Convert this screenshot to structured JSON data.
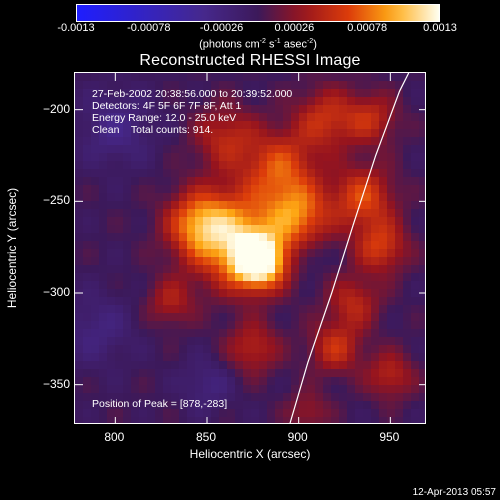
{
  "colorbar": {
    "ticks": [
      "-0.0013",
      "-0.00078",
      "-0.00026",
      "0.00026",
      "0.00078",
      "0.0013"
    ],
    "tick_values": [
      -0.0013,
      -0.00078,
      -0.00026,
      0.00026,
      0.00078,
      0.0013
    ],
    "range": [
      -0.0013,
      0.0013
    ]
  },
  "chart_data": {
    "type": "heatmap",
    "title": "Reconstructed RHESSI Image",
    "colorbar_units": {
      "prefix": "(photons cm",
      "exp1": "-2",
      "mid": " s",
      "exp2": "-1",
      "mid2": " asec",
      "exp3": "-2",
      "suffix": ")"
    },
    "xlabel": "Heliocentric X (arcsec)",
    "ylabel": "Heliocentric Y (arcsec)",
    "xlim": [
      778,
      970
    ],
    "ylim": [
      -372,
      -180
    ],
    "x_ticks": [
      800,
      850,
      900,
      950
    ],
    "y_ticks": [
      -200,
      -250,
      -300,
      -350
    ],
    "info": [
      "27-Feb-2002 20:38:56.000 to 20:39:52.000",
      "Detectors: 4F 5F 6F 7F 8F, Att 1",
      "Energy Range: 12.0 - 25.0 keV",
      "Clean    Total counts: 914."
    ],
    "peak_label": "Position of Peak = [878,-283]",
    "peak": [
      878,
      -283
    ],
    "limb_points": [
      [
        895,
        -372
      ],
      [
        905,
        -338
      ],
      [
        918,
        -300
      ],
      [
        930,
        -262
      ],
      [
        942,
        -225
      ],
      [
        955,
        -190
      ],
      [
        960,
        -180
      ]
    ],
    "sources": [
      {
        "x": 878,
        "y": -283,
        "amp": 1.0,
        "r": 10
      },
      {
        "x": 865,
        "y": -270,
        "amp": 0.7,
        "r": 18
      },
      {
        "x": 845,
        "y": -262,
        "amp": 0.5,
        "r": 12
      },
      {
        "x": 900,
        "y": -258,
        "amp": 0.55,
        "r": 12
      },
      {
        "x": 890,
        "y": -232,
        "amp": 0.5,
        "r": 14
      },
      {
        "x": 935,
        "y": -248,
        "amp": 0.5,
        "r": 12
      },
      {
        "x": 945,
        "y": -275,
        "amp": 0.45,
        "r": 10
      },
      {
        "x": 860,
        "y": -215,
        "amp": 0.35,
        "r": 12
      },
      {
        "x": 915,
        "y": -205,
        "amp": 0.4,
        "r": 12
      },
      {
        "x": 940,
        "y": -205,
        "amp": 0.35,
        "r": 10
      },
      {
        "x": 930,
        "y": -305,
        "amp": 0.35,
        "r": 10
      },
      {
        "x": 920,
        "y": -330,
        "amp": 0.4,
        "r": 10
      },
      {
        "x": 875,
        "y": -330,
        "amp": 0.35,
        "r": 10
      },
      {
        "x": 950,
        "y": -345,
        "amp": 0.35,
        "r": 9
      },
      {
        "x": 830,
        "y": -305,
        "amp": 0.3,
        "r": 9
      },
      {
        "x": 905,
        "y": -365,
        "amp": 0.25,
        "r": 8
      },
      {
        "x": 800,
        "y": -210,
        "amp": -0.25,
        "r": 14
      },
      {
        "x": 790,
        "y": -320,
        "amp": -0.2,
        "r": 14
      },
      {
        "x": 850,
        "y": -350,
        "amp": -0.2,
        "r": 10
      },
      {
        "x": 905,
        "y": -280,
        "amp": -0.15,
        "r": 6
      }
    ]
  },
  "timestamp": "12-Apr-2013 05:57"
}
